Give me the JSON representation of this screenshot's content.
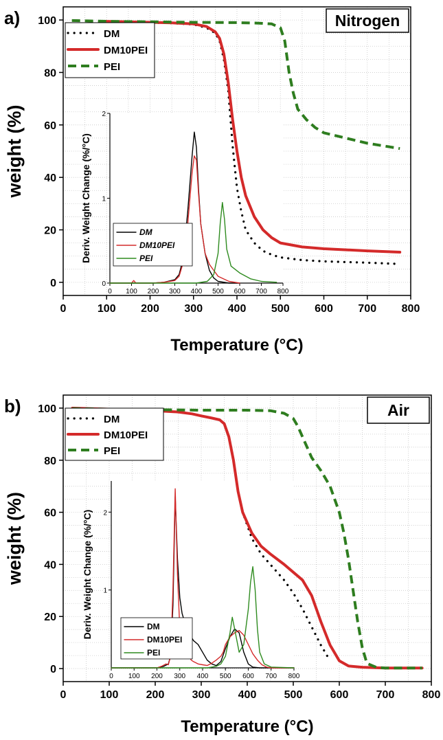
{
  "colors": {
    "DM": "#000000",
    "DM10PEI": "#d42a2a",
    "PEI": "#2e7d1f",
    "inset_DM": "#000000",
    "inset_DM10PEI": "#d42a2a",
    "inset_PEI": "#2e8b1f"
  },
  "chart_data": [
    {
      "type": "line",
      "panel_label": "a)",
      "annotation": "Nitrogen",
      "xlabel": "Temperature (°C)",
      "ylabel": "weight (%)",
      "xlim": [
        0,
        800
      ],
      "ylim": [
        -5,
        105
      ],
      "x_ticks": [
        "0",
        "100",
        "200",
        "300",
        "400",
        "500",
        "600",
        "700",
        "800"
      ],
      "y_ticks": [
        "0",
        "20",
        "40",
        "60",
        "80",
        "100"
      ],
      "grid": true,
      "legend_position": "top-left",
      "series": [
        {
          "name": "DM",
          "style": "dotted",
          "x": [
            90,
            150,
            200,
            250,
            300,
            330,
            350,
            360,
            370,
            380,
            390,
            400,
            410,
            420,
            440,
            460,
            480,
            500,
            550,
            600,
            700,
            775
          ],
          "y": [
            99.5,
            99.2,
            99,
            98.8,
            98.3,
            97,
            95,
            92,
            85,
            73,
            52,
            36,
            27,
            20,
            15,
            12,
            10.5,
            9.5,
            8.5,
            8,
            7.5,
            7
          ]
        },
        {
          "name": "DM10PEI",
          "style": "solid",
          "x": [
            90,
            150,
            200,
            250,
            300,
            330,
            350,
            360,
            370,
            380,
            390,
            400,
            410,
            420,
            440,
            460,
            480,
            500,
            550,
            600,
            700,
            775
          ],
          "y": [
            99.5,
            99.3,
            99.1,
            98.9,
            98.5,
            97.5,
            95.5,
            93,
            87,
            76,
            62,
            50,
            40,
            33,
            25,
            20,
            17,
            15,
            13.5,
            12.8,
            12,
            11.5
          ]
        },
        {
          "name": "PEI",
          "style": "dashed",
          "x": [
            20,
            100,
            200,
            300,
            400,
            450,
            480,
            500,
            510,
            520,
            530,
            540,
            560,
            580,
            600,
            650,
            700,
            775
          ],
          "y": [
            99.8,
            99.5,
            99.3,
            99.1,
            99,
            98.8,
            98.5,
            97,
            92,
            80,
            72,
            66,
            62,
            59,
            57,
            55,
            53,
            51
          ]
        }
      ],
      "inset": {
        "type": "line",
        "ylabel": "Deriv. Weight Change (%/°C)",
        "xlim": [
          0,
          800
        ],
        "ylim": [
          0,
          2
        ],
        "x_ticks": [
          "0",
          "100",
          "200",
          "300",
          "400",
          "500",
          "600",
          "700",
          "800"
        ],
        "y_ticks": [
          "0",
          "1",
          "2"
        ],
        "legend_position": "bottom-left",
        "series": [
          {
            "name": "DM",
            "x": [
              0,
              200,
              250,
              300,
              320,
              340,
              360,
              380,
              390,
              400,
              410,
              420,
              440,
              460,
              480,
              500,
              550,
              600
            ],
            "y": [
              0,
              0,
              0.01,
              0.04,
              0.1,
              0.3,
              0.85,
              1.5,
              1.78,
              1.6,
              1.1,
              0.7,
              0.35,
              0.15,
              0.06,
              0.02,
              0,
              0
            ]
          },
          {
            "name": "DM10PEI",
            "x": [
              0,
              100,
              110,
              120,
              200,
              250,
              300,
              320,
              340,
              360,
              380,
              390,
              400,
              410,
              420,
              440,
              460,
              480,
              500,
              550,
              600
            ],
            "y": [
              0,
              0,
              0.03,
              0,
              0,
              0.01,
              0.03,
              0.08,
              0.25,
              0.7,
              1.3,
              1.5,
              1.45,
              1.05,
              0.7,
              0.35,
              0.22,
              0.15,
              0.08,
              0.02,
              0
            ]
          },
          {
            "name": "PEI",
            "x": [
              0,
              300,
              400,
              450,
              480,
              500,
              510,
              520,
              530,
              540,
              560,
              600,
              650,
              700,
              770
            ],
            "y": [
              0,
              0,
              0,
              0.02,
              0.1,
              0.35,
              0.7,
              0.95,
              0.75,
              0.4,
              0.2,
              0.12,
              0.05,
              0.02,
              0.01
            ]
          }
        ]
      }
    },
    {
      "type": "line",
      "panel_label": "b)",
      "annotation": "Air",
      "xlabel": "Temperature (°C)",
      "ylabel": "weight (%)",
      "xlim": [
        0,
        800
      ],
      "ylim": [
        -5,
        105
      ],
      "x_ticks": [
        "0",
        "100",
        "200",
        "300",
        "400",
        "500",
        "600",
        "700",
        "800"
      ],
      "y_ticks": [
        "0",
        "20",
        "40",
        "60",
        "80",
        "100"
      ],
      "grid": true,
      "legend_position": "top-left",
      "series": [
        {
          "name": "DM",
          "style": "dotted",
          "x": [
            20,
            100,
            200,
            250,
            280,
            300,
            320,
            340,
            350,
            360,
            370,
            380,
            390,
            400,
            410,
            430,
            450,
            480,
            500,
            520,
            540,
            560,
            580
          ],
          "y": [
            100,
            99.6,
            99,
            98.5,
            97.8,
            97,
            96.3,
            95.5,
            94,
            89,
            80,
            68,
            60,
            55,
            50,
            44,
            40,
            34,
            29,
            23,
            16,
            9,
            3
          ]
        },
        {
          "name": "DM10PEI",
          "style": "solid",
          "x": [
            20,
            100,
            200,
            250,
            280,
            300,
            320,
            340,
            350,
            360,
            370,
            380,
            390,
            400,
            410,
            430,
            450,
            480,
            500,
            520,
            540,
            560,
            580,
            600,
            620,
            650,
            700,
            780
          ],
          "y": [
            100,
            99.6,
            99,
            98.5,
            97.8,
            97,
            96.3,
            95.5,
            94,
            89,
            80,
            68,
            60,
            56,
            52,
            47,
            44,
            40,
            37,
            34,
            28,
            18,
            9,
            3,
            1,
            0.5,
            0.2,
            0.2
          ]
        },
        {
          "name": "PEI",
          "style": "dashed",
          "x": [
            20,
            100,
            200,
            300,
            400,
            450,
            480,
            500,
            510,
            520,
            530,
            540,
            560,
            580,
            600,
            610,
            620,
            630,
            640,
            650,
            660,
            680,
            700,
            780
          ],
          "y": [
            99.8,
            99.6,
            99.4,
            99.2,
            99.2,
            99,
            98,
            96,
            93,
            89,
            85,
            81,
            76,
            70,
            60,
            52,
            42,
            30,
            18,
            8,
            2,
            0.5,
            0.2,
            0.2
          ]
        }
      ],
      "inset": {
        "type": "line",
        "ylabel": "Deriv. Weight Change (%/°C)",
        "xlim": [
          0,
          800
        ],
        "ylim": [
          0,
          2.4
        ],
        "x_ticks": [
          "0",
          "100",
          "200",
          "300",
          "400",
          "500",
          "600",
          "700",
          "800"
        ],
        "y_ticks": [
          "1",
          "2"
        ],
        "legend_position": "bottom-left",
        "series": [
          {
            "name": "DM",
            "x": [
              0,
              200,
              230,
              250,
              260,
              270,
              280,
              290,
              300,
              310,
              320,
              330,
              340,
              350,
              360,
              380,
              400,
              420,
              440,
              460,
              480,
              500,
              520,
              540,
              560,
              580,
              600,
              620,
              650,
              700,
              800
            ],
            "y": [
              0,
              0,
              0.02,
              0.05,
              0.15,
              0.8,
              2.2,
              1.4,
              0.9,
              0.7,
              0.6,
              0.55,
              0.5,
              0.4,
              0.35,
              0.3,
              0.2,
              0.1,
              0.05,
              0.03,
              0.08,
              0.25,
              0.4,
              0.5,
              0.45,
              0.2,
              0.05,
              0.01,
              0,
              0,
              0
            ]
          },
          {
            "name": "DM10PEI",
            "x": [
              0,
              100,
              200,
              220,
              240,
              250,
              260,
              270,
              280,
              290,
              300,
              310,
              320,
              330,
              340,
              350,
              360,
              380,
              400,
              420,
              440,
              460,
              480,
              490,
              500,
              520,
              540,
              560,
              580,
              600,
              620,
              640,
              660,
              680,
              700,
              800
            ],
            "y": [
              0,
              0,
              0,
              0.02,
              0.05,
              0.04,
              0.15,
              1,
              2.3,
              1.2,
              0.5,
              0.35,
              0.3,
              0.25,
              0.15,
              0.1,
              0.08,
              0.05,
              0.04,
              0.03,
              0.06,
              0.1,
              0.15,
              0.2,
              0.3,
              0.4,
              0.45,
              0.48,
              0.42,
              0.3,
              0.18,
              0.1,
              0.04,
              0.01,
              0,
              0
            ]
          },
          {
            "name": "PEI",
            "x": [
              0,
              300,
              400,
              420,
              440,
              460,
              480,
              500,
              510,
              520,
              530,
              540,
              550,
              560,
              580,
              600,
              610,
              620,
              630,
              640,
              650,
              670,
              700,
              800
            ],
            "y": [
              0,
              0,
              0,
              0,
              0.01,
              0.02,
              0.05,
              0.15,
              0.3,
              0.45,
              0.65,
              0.5,
              0.35,
              0.2,
              0.3,
              0.75,
              1.1,
              1.3,
              1.0,
              0.5,
              0.2,
              0.05,
              0.01,
              0
            ]
          }
        ]
      }
    }
  ]
}
